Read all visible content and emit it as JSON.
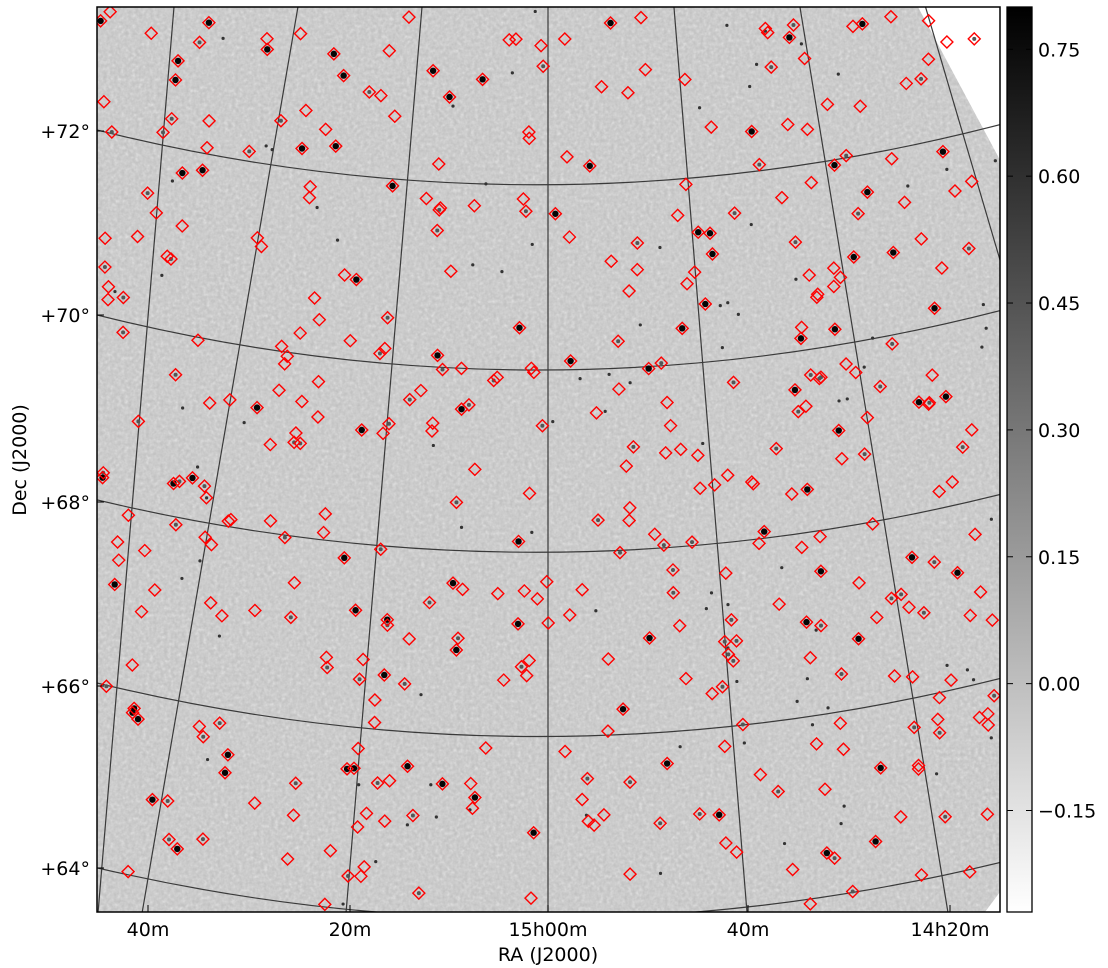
{
  "chart_data": {
    "type": "heatmap",
    "title": "",
    "projection": "sky image (radio continuum), curved RA/Dec coordinate grid",
    "xlabel": "RA (J2000)",
    "ylabel": "Dec (J2000)",
    "x_ticks": [
      "40m",
      "20m",
      "15h00m",
      "40m",
      "14h20m"
    ],
    "y_ticks": [
      "+64°",
      "+66°",
      "+68°",
      "+70°",
      "+72°"
    ],
    "colormap": "gray_r (white = low, black = high)",
    "colorbar": {
      "ticks": [
        "0.75",
        "0.60",
        "0.45",
        "0.30",
        "0.15",
        "0.00",
        "−0.15"
      ],
      "tick_values": [
        0.75,
        0.6,
        0.45,
        0.3,
        0.15,
        0.0,
        -0.15
      ],
      "range": [
        -0.27,
        0.8
      ]
    },
    "grid": true,
    "markers": {
      "shape": "diamond",
      "color": "#ff0000",
      "description": "catalogued source positions overlaid on image"
    },
    "colors": {
      "background_gray": "#bcbcbc",
      "marker": "#ff0000",
      "grid": "#3a3a3a"
    }
  }
}
